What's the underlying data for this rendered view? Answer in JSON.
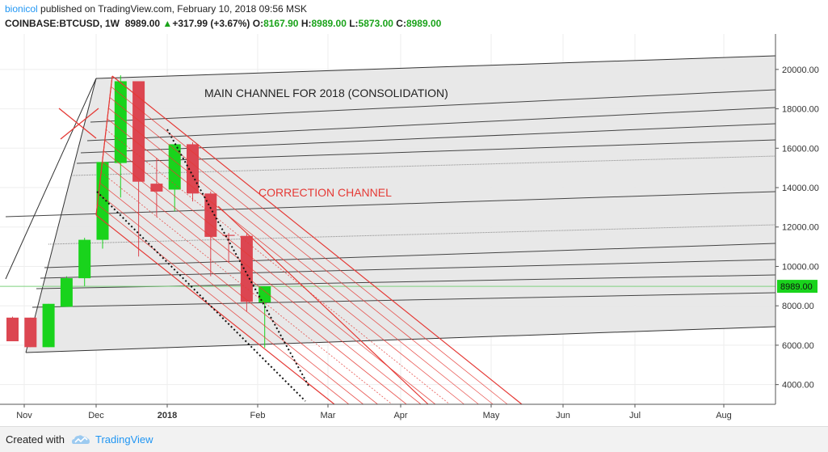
{
  "header": {
    "author": "bionicol",
    "published_text": "published on TradingView.com, February 10, 2018 09:56 MSK",
    "symbol": "COINBASE:BTCUSD, 1W",
    "last": "8989.00",
    "change_arrow": "▲",
    "change": "+317.99 (+3.67%)",
    "o_label": "O:",
    "o_value": "8167.90",
    "h_label": "H:",
    "h_value": "8989.00",
    "l_label": "L:",
    "l_value": "5873.00",
    "c_label": "C:",
    "c_value": "8989.00"
  },
  "footer": {
    "created_with": "Created with",
    "brand": "TradingView"
  },
  "chart_data": {
    "type": "candlestick",
    "title": "COINBASE:BTCUSD, 1W",
    "x_labels": [
      "Nov",
      "Dec",
      "2018",
      "Feb",
      "Mar",
      "Apr",
      "May",
      "Jun",
      "Jul",
      "Aug"
    ],
    "y_ticks": [
      "20000.00",
      "18000.00",
      "16000.00",
      "14000.00",
      "12000.00",
      "10000.00",
      "8000.00",
      "6000.00",
      "4000.00"
    ],
    "ylim": [
      3000,
      21800
    ],
    "price_label": "8989.00",
    "price_value": 8989,
    "annotations": [
      "MAIN CHANNEL FOR 2018 (CONSOLIDATION)",
      "CORRECTION CHANNEL"
    ],
    "candles": [
      {
        "o": 7400,
        "h": 7450,
        "l": 6250,
        "c": 6200
      },
      {
        "o": 7400,
        "h": 7400,
        "l": 5900,
        "c": 5900
      },
      {
        "o": 5900,
        "h": 8100,
        "l": 5900,
        "c": 8100
      },
      {
        "o": 7950,
        "h": 9500,
        "l": 7950,
        "c": 9400
      },
      {
        "o": 9400,
        "h": 11450,
        "l": 9000,
        "c": 11350
      },
      {
        "o": 11350,
        "h": 15200,
        "l": 10900,
        "c": 15300
      },
      {
        "o": 15250,
        "h": 19700,
        "l": 13500,
        "c": 19400
      },
      {
        "o": 19400,
        "h": 19400,
        "l": 10500,
        "c": 14300
      },
      {
        "o": 14200,
        "h": 15500,
        "l": 12500,
        "c": 13800
      },
      {
        "o": 13900,
        "h": 16200,
        "l": 12800,
        "c": 16200
      },
      {
        "o": 16200,
        "h": 16300,
        "l": 13300,
        "c": 13700
      },
      {
        "o": 13700,
        "h": 13800,
        "l": 9500,
        "c": 11500
      },
      {
        "o": 11600,
        "h": 11700,
        "l": 10200,
        "c": 11550
      },
      {
        "o": 11550,
        "h": 11650,
        "l": 7700,
        "c": 8200
      },
      {
        "o": 8168,
        "h": 8989,
        "l": 5873,
        "c": 8989
      }
    ]
  }
}
